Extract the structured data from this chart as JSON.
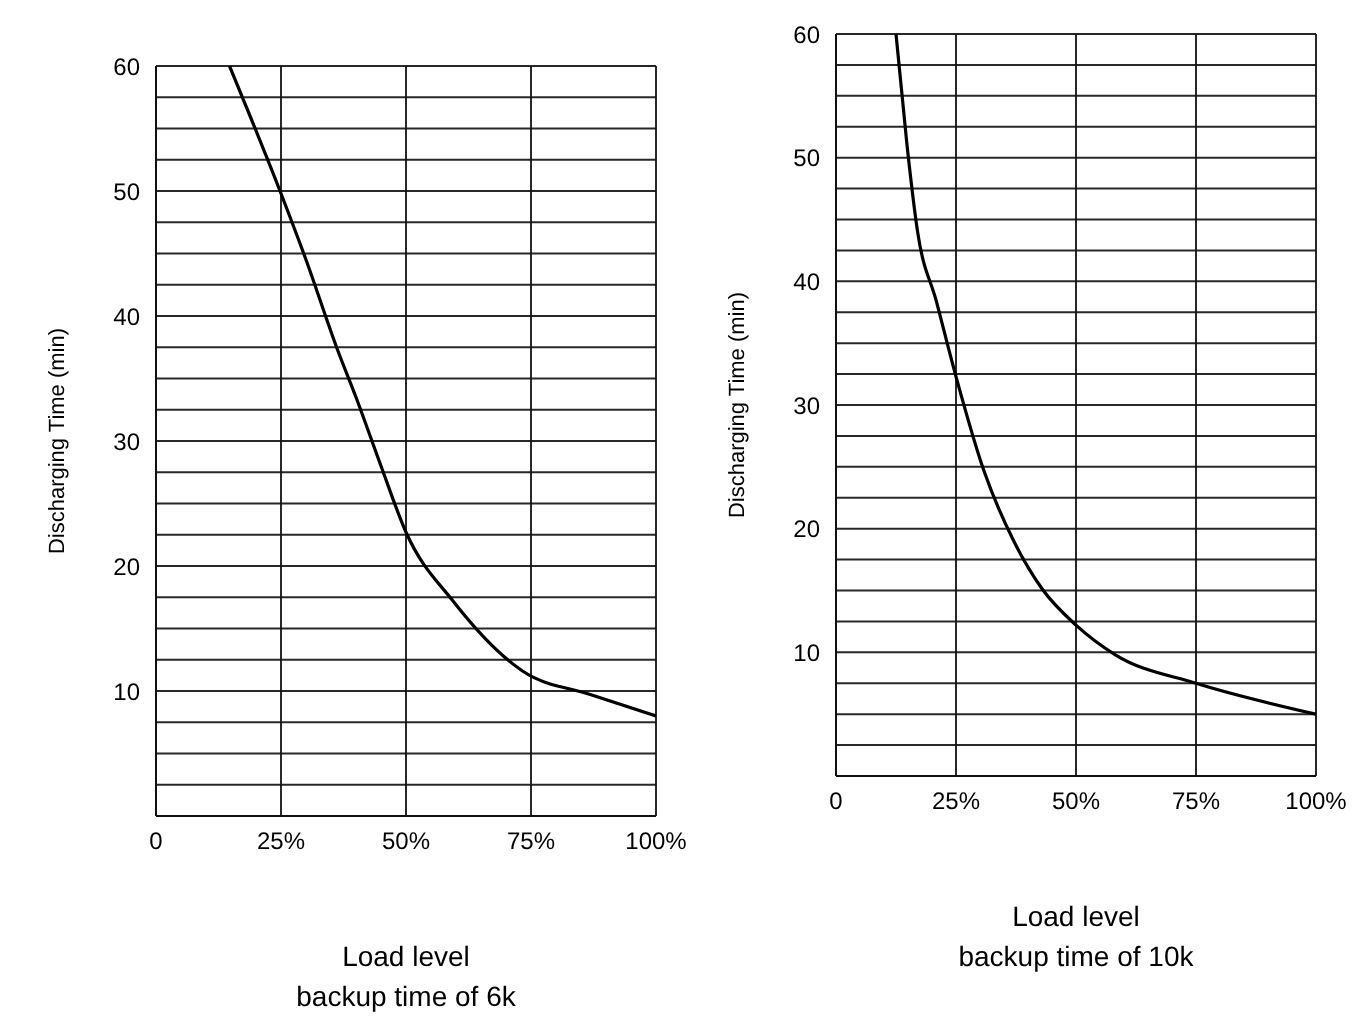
{
  "chart_data": [
    {
      "type": "line",
      "ylabel": "Discharging Time (min)",
      "xlabel": "Load level",
      "annotations": [
        "backup time of 6k"
      ],
      "xlim": [
        0,
        100
      ],
      "ylim": [
        0,
        60
      ],
      "xticks": [
        0,
        {
          "value": 25,
          "label": "25%"
        },
        {
          "value": 50,
          "label": "50%"
        },
        {
          "value": 75,
          "label": "75%"
        },
        {
          "value": 100,
          "label": "100%"
        }
      ],
      "yticks": [
        {
          "value": 0,
          "label": null
        },
        {
          "value": 2.5,
          "label": null
        },
        {
          "value": 5,
          "label": null
        },
        {
          "value": 7.5,
          "label": null
        },
        10,
        {
          "value": 12.5,
          "label": null
        },
        {
          "value": 15,
          "label": null
        },
        {
          "value": 17.5,
          "label": null
        },
        20,
        {
          "value": 22.5,
          "label": null
        },
        {
          "value": 25,
          "label": null
        },
        {
          "value": 27.5,
          "label": null
        },
        30,
        {
          "value": 32.5,
          "label": null
        },
        {
          "value": 35,
          "label": null
        },
        {
          "value": 37.5,
          "label": null
        },
        40,
        {
          "value": 42.5,
          "label": null
        },
        {
          "value": 45,
          "label": null
        },
        {
          "value": 47.5,
          "label": null
        },
        50,
        {
          "value": 52.5,
          "label": null
        },
        {
          "value": 55,
          "label": null
        },
        {
          "value": 57.5,
          "label": null
        },
        60
      ],
      "grid": true,
      "marker": "none",
      "line_style": "solid",
      "series": [
        {
          "color": "#000000",
          "x": [
            14.7,
            25,
            30,
            36.3,
            40,
            45,
            50,
            59.4,
            73.3,
            87,
            100
          ],
          "values": [
            60,
            49.8,
            44.5,
            37.3,
            33.5,
            28,
            22.7,
            17.2,
            11.6,
            9.7,
            8
          ]
        }
      ]
    },
    {
      "type": "line",
      "ylabel": "Discharging Time (min)",
      "xlabel": "Load level",
      "annotations": [
        "backup time of 10k"
      ],
      "xlim": [
        0,
        100
      ],
      "ylim": [
        0,
        60
      ],
      "xticks": [
        0,
        {
          "value": 25,
          "label": "25%"
        },
        {
          "value": 50,
          "label": "50%"
        },
        {
          "value": 75,
          "label": "75%"
        },
        {
          "value": 100,
          "label": "100%"
        }
      ],
      "yticks": [
        {
          "value": 0,
          "label": null
        },
        {
          "value": 2.5,
          "label": null
        },
        {
          "value": 5,
          "label": null
        },
        {
          "value": 7.5,
          "label": null
        },
        10,
        {
          "value": 12.5,
          "label": null
        },
        {
          "value": 15,
          "label": null
        },
        {
          "value": 17.5,
          "label": null
        },
        20,
        {
          "value": 22.5,
          "label": null
        },
        {
          "value": 25,
          "label": null
        },
        {
          "value": 27.5,
          "label": null
        },
        30,
        {
          "value": 32.5,
          "label": null
        },
        {
          "value": 35,
          "label": null
        },
        {
          "value": 37.5,
          "label": null
        },
        40,
        {
          "value": 42.5,
          "label": null
        },
        {
          "value": 45,
          "label": null
        },
        {
          "value": 47.5,
          "label": null
        },
        50,
        {
          "value": 52.5,
          "label": null
        },
        {
          "value": 55,
          "label": null
        },
        {
          "value": 57.5,
          "label": null
        },
        60
      ],
      "grid": true,
      "marker": "none",
      "line_style": "solid",
      "series": [
        {
          "color": "#000000",
          "x": [
            12.5,
            14.8,
            17,
            20.9,
            25,
            30.8,
            36.9,
            43,
            50,
            58.2,
            75,
            100
          ],
          "values": [
            60,
            51,
            44,
            38.4,
            32.3,
            24.7,
            19.1,
            15.1,
            12.2,
            9.8,
            7.5,
            5
          ]
        }
      ]
    }
  ]
}
